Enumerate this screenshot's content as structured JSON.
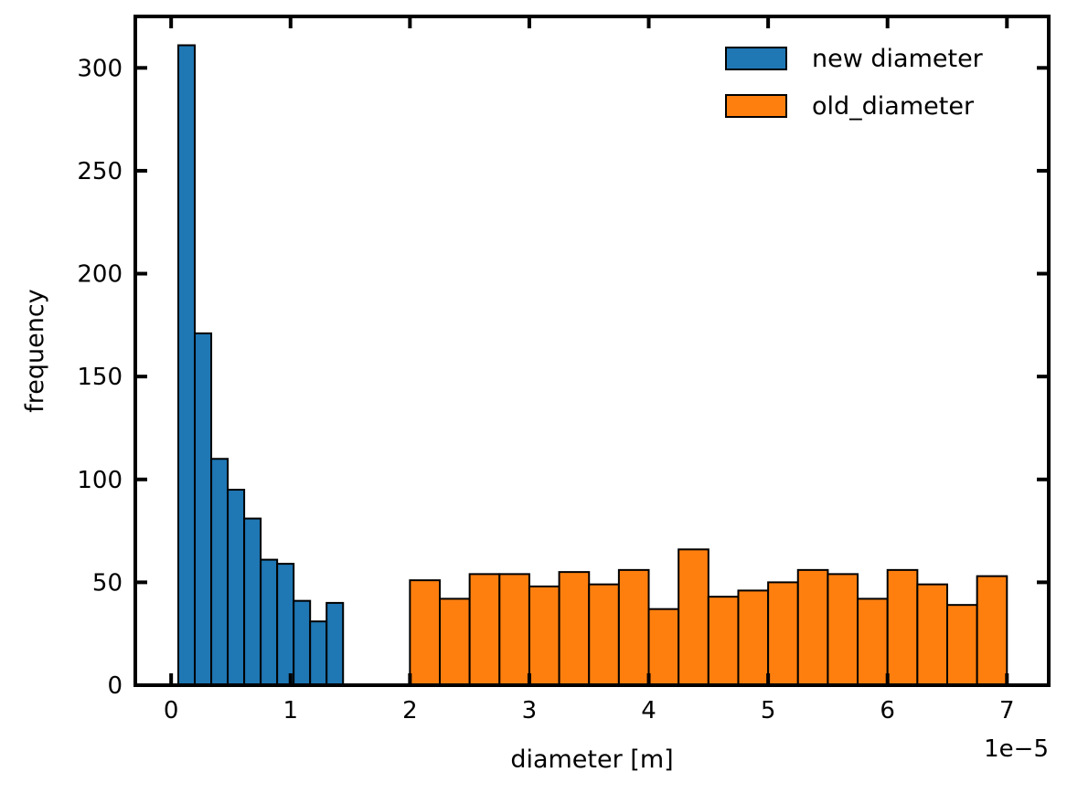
{
  "chart_data": {
    "type": "bar",
    "xlabel": "diameter [m]",
    "ylabel": "frequency",
    "x_offset_label": "1e−5",
    "x_scale": 1e-05,
    "xlim": [
      -0.3,
      7.35
    ],
    "ylim": [
      0,
      325
    ],
    "x_ticks": [
      0,
      1,
      2,
      3,
      4,
      5,
      6,
      7
    ],
    "x_tick_labels": [
      "0",
      "1",
      "2",
      "3",
      "4",
      "5",
      "6",
      "7"
    ],
    "y_ticks": [
      0,
      50,
      100,
      150,
      200,
      250,
      300
    ],
    "y_tick_labels": [
      "0",
      "50",
      "100",
      "150",
      "200",
      "250",
      "300"
    ],
    "grid": false,
    "legend_position": "top-right",
    "series": [
      {
        "name": "new diameter",
        "color": "#1f77b4",
        "bin_edges": [
          0.06,
          0.198,
          0.336,
          0.474,
          0.612,
          0.75,
          0.888,
          1.026,
          1.164,
          1.302,
          1.44
        ],
        "values": [
          311,
          171,
          110,
          95,
          81,
          61,
          59,
          41,
          31,
          40
        ]
      },
      {
        "name": "old_diameter",
        "color": "#ff7f0e",
        "bin_edges": [
          2.0,
          2.25,
          2.5,
          2.75,
          3.0,
          3.25,
          3.5,
          3.75,
          4.0,
          4.25,
          4.5,
          4.75,
          5.0,
          5.25,
          5.5,
          5.75,
          6.0,
          6.25,
          6.5,
          6.75,
          7.0
        ],
        "values": [
          51,
          42,
          54,
          54,
          48,
          55,
          49,
          56,
          37,
          66,
          43,
          46,
          50,
          56,
          54,
          42,
          56,
          49,
          39,
          53
        ]
      }
    ]
  }
}
